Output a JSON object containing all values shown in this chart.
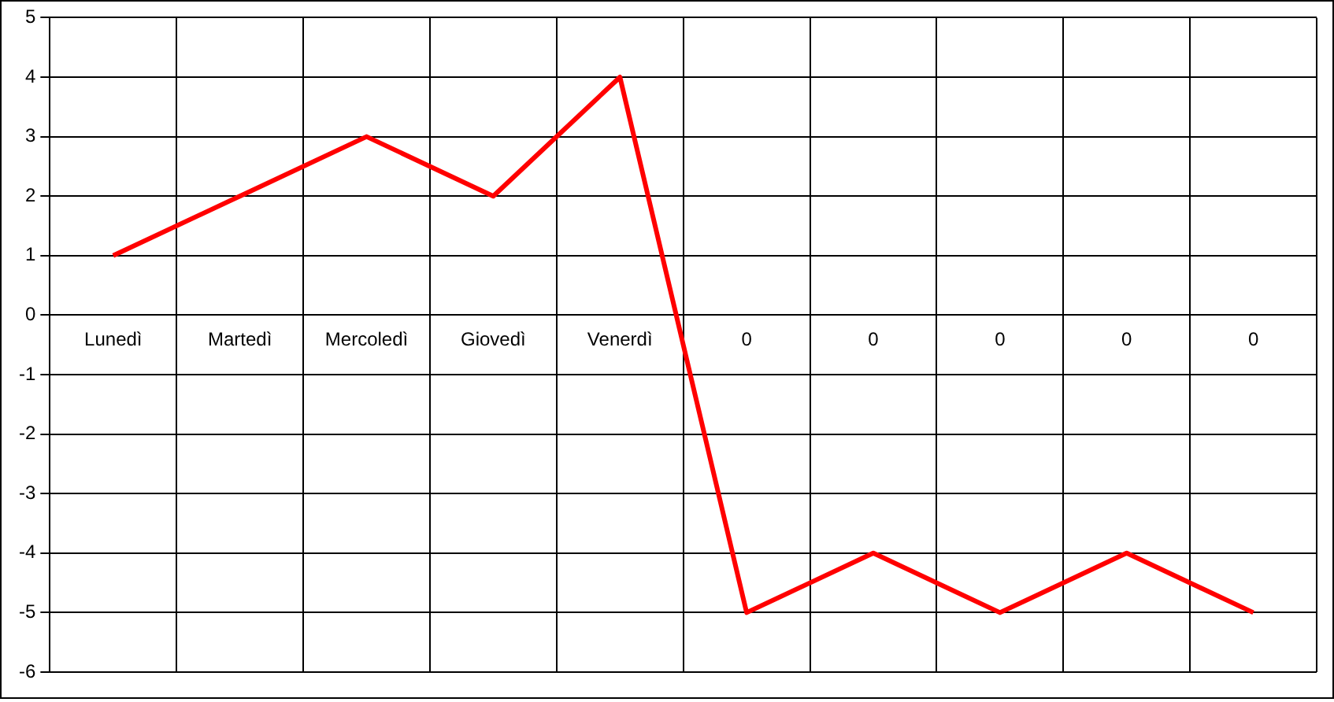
{
  "chart_data": {
    "type": "line",
    "categories": [
      "Lunedì",
      "Martedì",
      "Mercoledì",
      "Giovedì",
      "Venerdì",
      "0",
      "0",
      "0",
      "0",
      "0"
    ],
    "series": [
      {
        "color": "#ff0000",
        "values": [
          1,
          2,
          3,
          2,
          4,
          -5,
          -4,
          -5,
          -4,
          -5
        ]
      }
    ],
    "ylim": [
      -6,
      5
    ],
    "yticks": [
      -6,
      -5,
      -4,
      -3,
      -2,
      -1,
      0,
      1,
      2,
      3,
      4,
      5
    ],
    "grid": true,
    "legend": false,
    "marker": "none",
    "line_style": "solid"
  }
}
